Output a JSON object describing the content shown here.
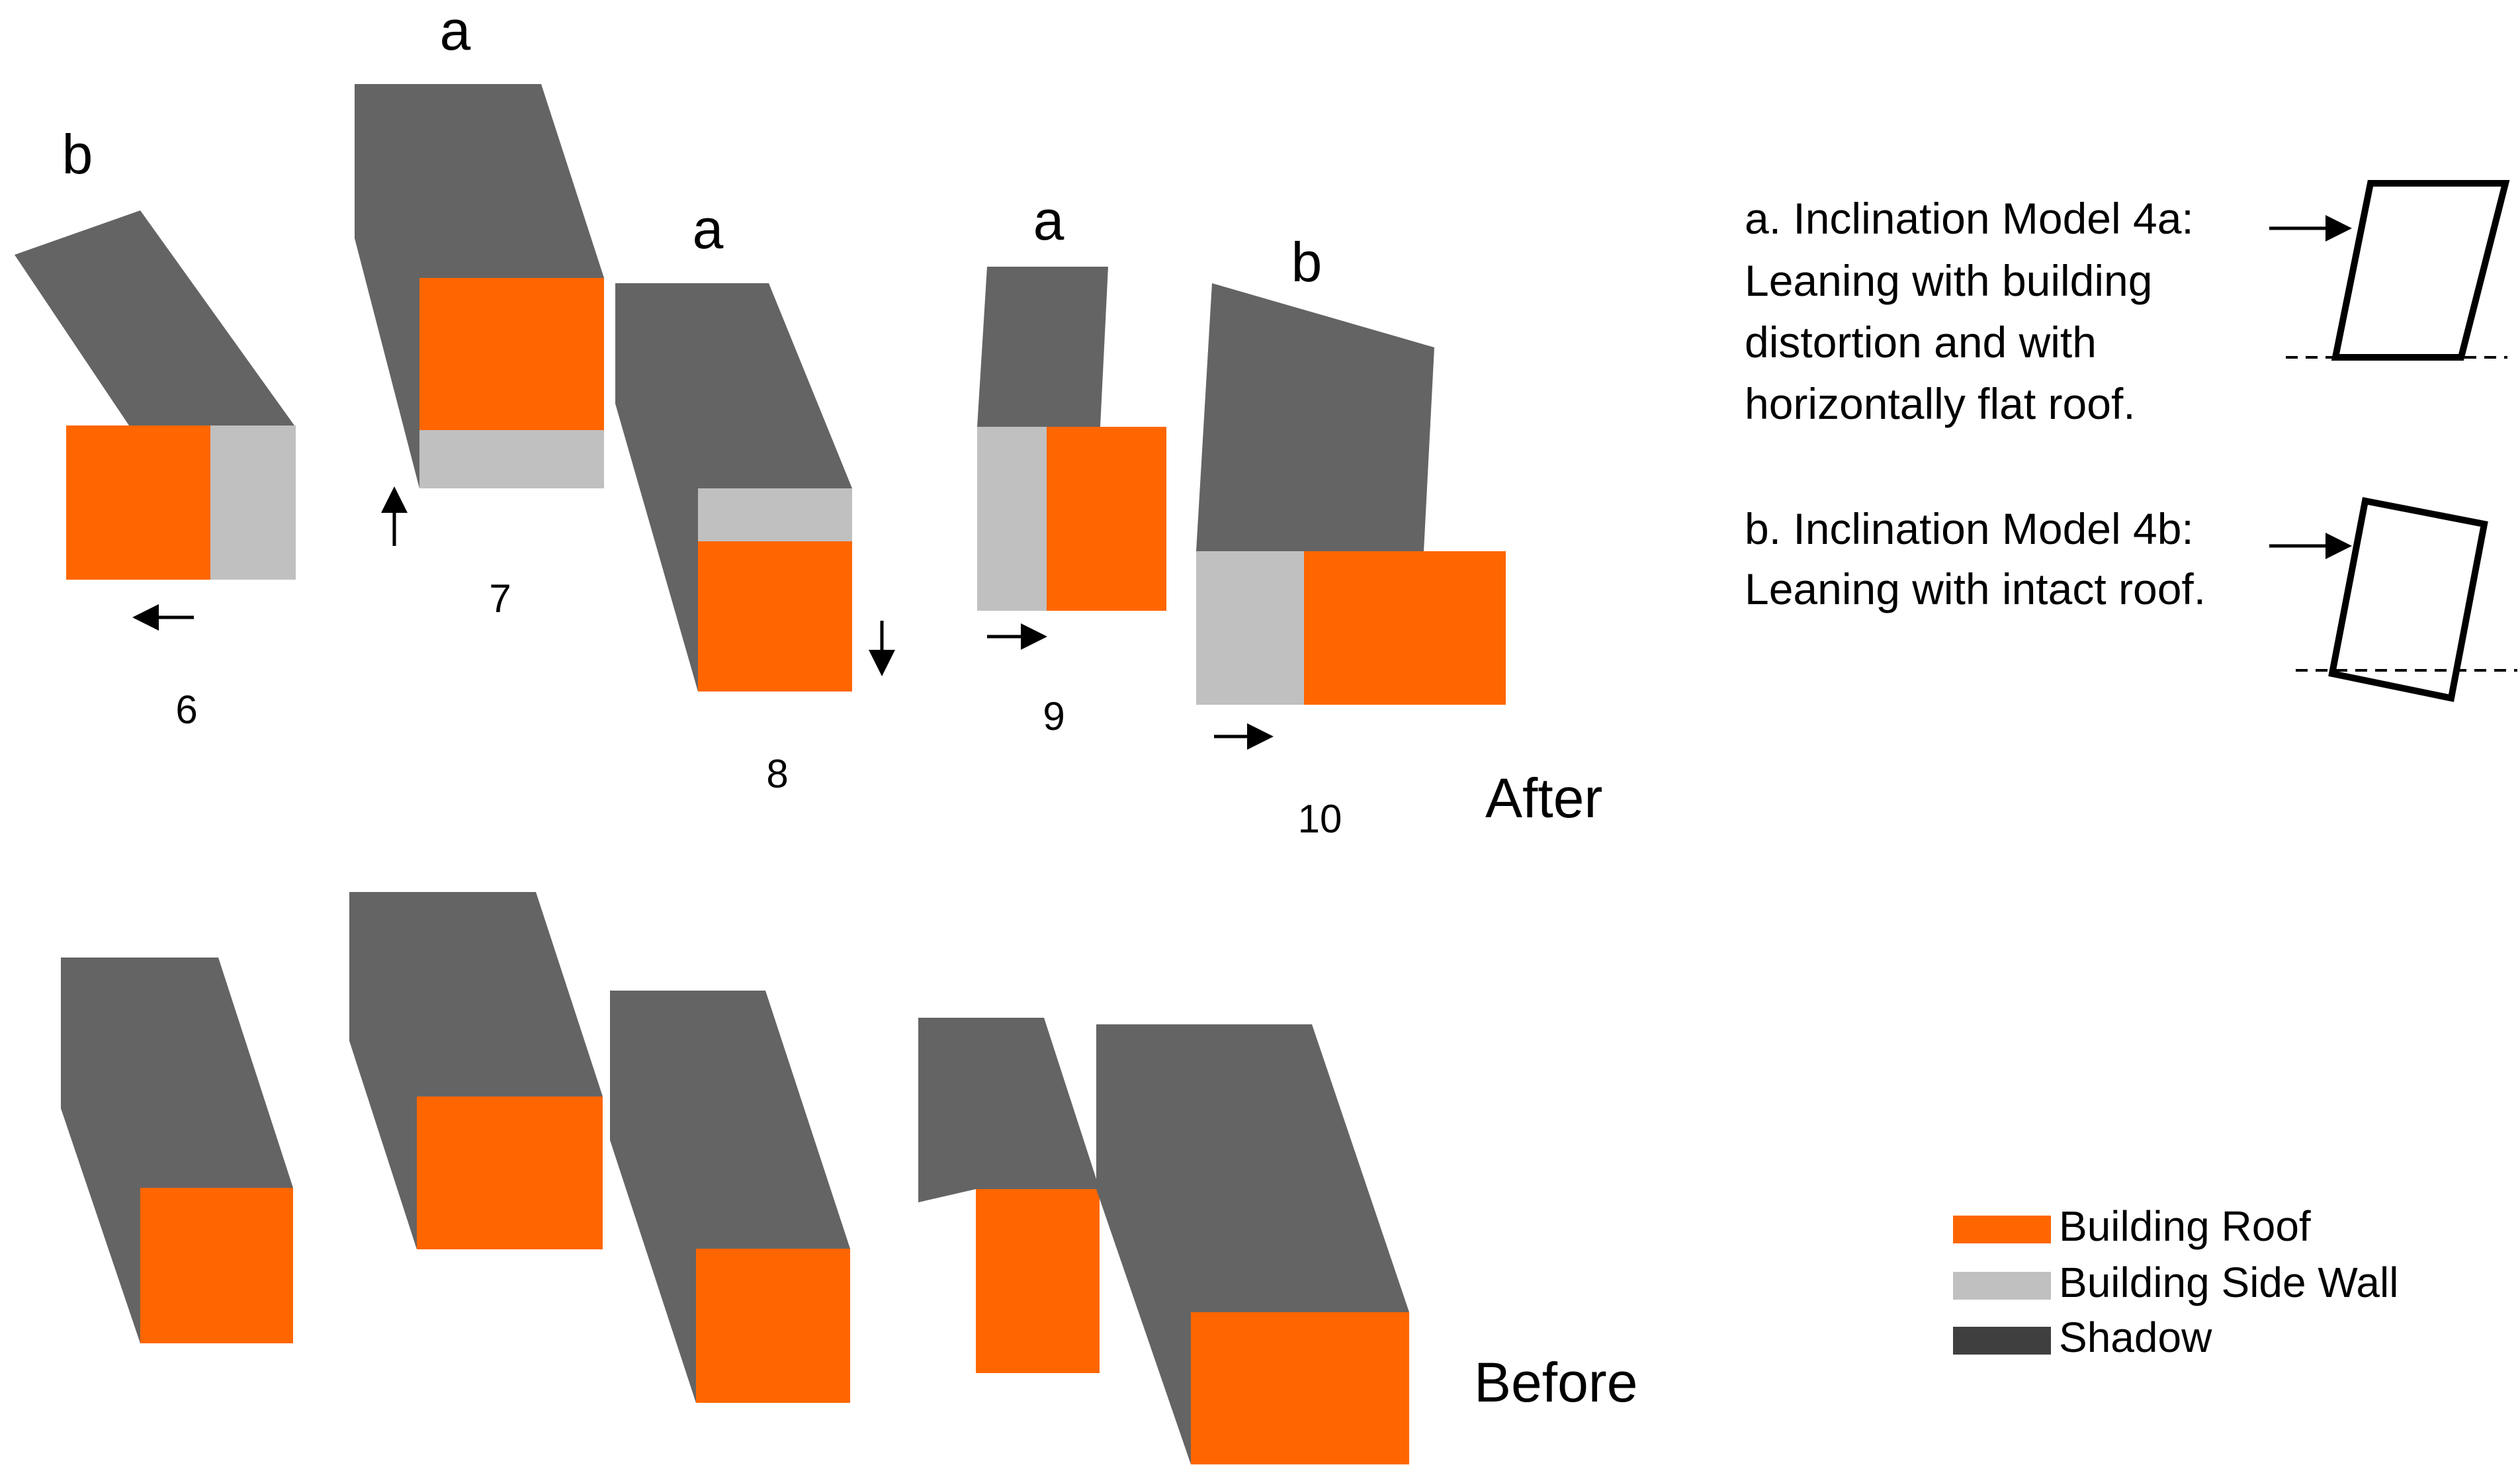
{
  "colors": {
    "roof": "#ff6600",
    "side_wall": "#c0c0c0",
    "shadow": "#646464",
    "shadow_legend": "#3f3f3f"
  },
  "labels": {
    "after": "After",
    "before": "Before",
    "type_a": "a",
    "type_b": "b"
  },
  "buildings": [
    {
      "number": "6",
      "type": "b",
      "arrow": "left"
    },
    {
      "number": "7",
      "type": "a",
      "arrow": "up"
    },
    {
      "number": "8",
      "type": "a",
      "arrow": "down"
    },
    {
      "number": "9",
      "type": "a",
      "arrow": "right"
    },
    {
      "number": "10",
      "type": "b",
      "arrow": "right"
    }
  ],
  "models": {
    "a": {
      "lines": [
        "a. Inclination Model 4a:",
        "Leaning with building",
        "distortion and with",
        "horizontally flat roof."
      ]
    },
    "b": {
      "lines": [
        "b. Inclination Model 4b:",
        "Leaning with intact roof."
      ]
    }
  },
  "legend": [
    {
      "label": "Building Roof",
      "color": "#ff6600"
    },
    {
      "label": "Building Side Wall",
      "color": "#c0c0c0"
    },
    {
      "label": "Shadow",
      "color": "#3f3f3f"
    }
  ]
}
